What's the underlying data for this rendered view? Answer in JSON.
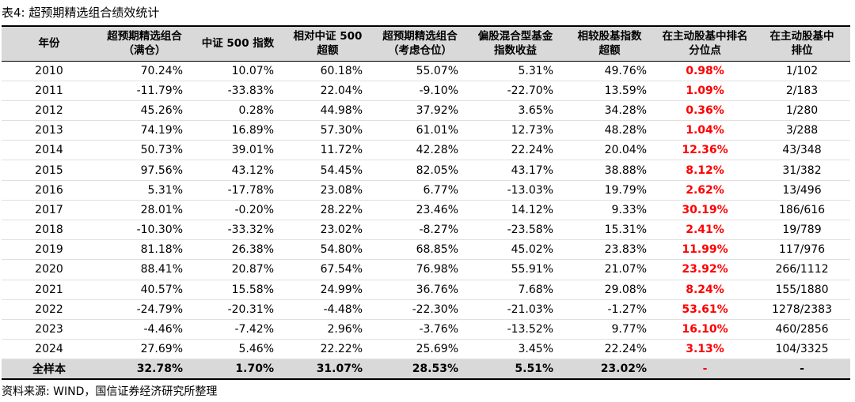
{
  "caption": "表4: 超预期精选组合绩效统计",
  "headers": [
    [
      "年份"
    ],
    [
      "超预期精选组合",
      "（满仓）"
    ],
    [
      "中证 500 指数"
    ],
    [
      "相对中证 500",
      "超额"
    ],
    [
      "超预期精选组合",
      "（考虑仓位）"
    ],
    [
      "偏股混合型基金",
      "指数收益"
    ],
    [
      "相较股基指数",
      "超额"
    ],
    [
      "在主动股基中排名",
      "分位点"
    ],
    [
      "在主动股基中",
      "排位"
    ]
  ],
  "rows": [
    [
      "2010",
      "70.24%",
      "10.07%",
      "60.18%",
      "55.07%",
      "5.31%",
      "49.76%",
      "0.98%",
      "1/102"
    ],
    [
      "2011",
      "-11.79%",
      "-33.83%",
      "22.04%",
      "-9.10%",
      "-22.70%",
      "13.59%",
      "1.09%",
      "2/183"
    ],
    [
      "2012",
      "45.26%",
      "0.28%",
      "44.98%",
      "37.92%",
      "3.65%",
      "34.28%",
      "0.36%",
      "1/280"
    ],
    [
      "2013",
      "74.19%",
      "16.89%",
      "57.30%",
      "61.01%",
      "12.73%",
      "48.28%",
      "1.04%",
      "3/288"
    ],
    [
      "2014",
      "50.73%",
      "39.01%",
      "11.72%",
      "42.28%",
      "22.24%",
      "20.04%",
      "12.36%",
      "43/348"
    ],
    [
      "2015",
      "97.56%",
      "43.12%",
      "54.45%",
      "82.05%",
      "43.17%",
      "38.88%",
      "8.12%",
      "31/382"
    ],
    [
      "2016",
      "5.31%",
      "-17.78%",
      "23.08%",
      "6.77%",
      "-13.03%",
      "19.79%",
      "2.62%",
      "13/496"
    ],
    [
      "2017",
      "28.01%",
      "-0.20%",
      "28.22%",
      "23.46%",
      "14.12%",
      "9.33%",
      "30.19%",
      "186/616"
    ],
    [
      "2018",
      "-10.30%",
      "-33.32%",
      "23.02%",
      "-8.27%",
      "-23.58%",
      "15.31%",
      "2.41%",
      "19/789"
    ],
    [
      "2019",
      "81.18%",
      "26.38%",
      "54.80%",
      "68.85%",
      "45.02%",
      "23.83%",
      "11.99%",
      "117/976"
    ],
    [
      "2020",
      "88.41%",
      "20.87%",
      "67.54%",
      "76.98%",
      "55.91%",
      "21.07%",
      "23.92%",
      "266/1112"
    ],
    [
      "2021",
      "40.57%",
      "15.58%",
      "24.99%",
      "36.76%",
      "7.68%",
      "29.08%",
      "8.24%",
      "155/1880"
    ],
    [
      "2022",
      "-24.79%",
      "-20.31%",
      "-4.48%",
      "-22.30%",
      "-21.03%",
      "-1.27%",
      "53.61%",
      "1278/2383"
    ],
    [
      "2023",
      "-4.46%",
      "-7.42%",
      "2.96%",
      "-3.76%",
      "-13.52%",
      "9.77%",
      "16.10%",
      "460/2856"
    ],
    [
      "2024",
      "27.69%",
      "5.46%",
      "22.22%",
      "25.69%",
      "3.45%",
      "22.24%",
      "3.13%",
      "104/3325"
    ]
  ],
  "total": [
    "全样本",
    "32.78%",
    "1.70%",
    "31.07%",
    "28.53%",
    "5.51%",
    "23.02%",
    "-",
    "-"
  ],
  "source": "资料来源: WIND，国信证券经济研究所整理",
  "colors": {
    "highlight": "#ff0000",
    "header_bg": "#d9d9d9"
  }
}
